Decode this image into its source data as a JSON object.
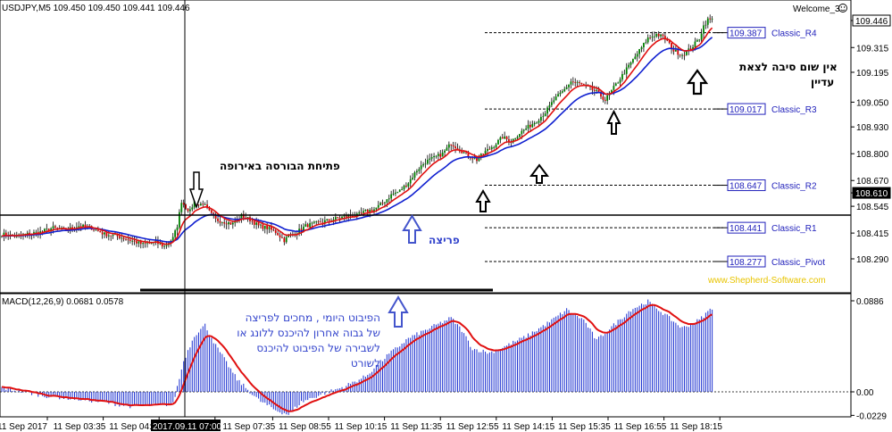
{
  "header": {
    "title": "USDJPY,M5  109.450 109.450 109.441 109.446",
    "account": "Welcome_3"
  },
  "chart_data": [
    {
      "type": "candlestick",
      "symbol": "USDJPY",
      "timeframe": "M5",
      "ylim": [
        108.26,
        109.5
      ],
      "y_ticks": [
        "109.446",
        "109.315",
        "109.195",
        "109.050",
        "108.930",
        "108.800",
        "108.670",
        "108.610",
        "108.545",
        "108.415",
        "108.290"
      ],
      "current_price": "109.446",
      "current_price_value": 109.446,
      "marked_level": "108.610",
      "marked_level_value": 108.61,
      "pivots": [
        {
          "name": "Classic_R4",
          "label": "109.387",
          "value": 109.387
        },
        {
          "name": "Classic_R3",
          "label": "109.017",
          "value": 109.017
        },
        {
          "name": "Classic_R2",
          "label": "108.647",
          "value": 108.647
        },
        {
          "name": "Classic_R1",
          "label": "108.441",
          "value": 108.441
        },
        {
          "name": "Classic_Pivot",
          "label": "108.277",
          "value": 108.277
        }
      ],
      "close_path": [
        [
          0,
          108.41
        ],
        [
          6,
          108.4
        ],
        [
          12,
          108.41
        ],
        [
          18,
          108.42
        ],
        [
          24,
          108.44
        ],
        [
          30,
          108.43
        ],
        [
          36,
          108.45
        ],
        [
          42,
          108.44
        ],
        [
          48,
          108.41
        ],
        [
          54,
          108.4
        ],
        [
          60,
          108.38
        ],
        [
          66,
          108.36
        ],
        [
          72,
          108.37
        ],
        [
          76,
          108.35
        ],
        [
          80,
          108.39
        ],
        [
          82,
          108.45
        ],
        [
          84,
          108.57
        ],
        [
          86,
          108.54
        ],
        [
          88,
          108.52
        ],
        [
          90,
          108.57
        ],
        [
          92,
          108.55
        ],
        [
          94,
          108.56
        ],
        [
          96,
          108.53
        ],
        [
          100,
          108.48
        ],
        [
          104,
          108.47
        ],
        [
          108,
          108.46
        ],
        [
          112,
          108.5
        ],
        [
          116,
          108.48
        ],
        [
          120,
          108.45
        ],
        [
          124,
          108.44
        ],
        [
          128,
          108.42
        ],
        [
          130,
          108.4
        ],
        [
          132,
          108.38
        ],
        [
          134,
          108.4
        ],
        [
          138,
          108.42
        ],
        [
          142,
          108.45
        ],
        [
          146,
          108.46
        ],
        [
          150,
          108.47
        ],
        [
          154,
          108.48
        ],
        [
          158,
          108.49
        ],
        [
          162,
          108.5
        ],
        [
          166,
          108.5
        ],
        [
          170,
          108.52
        ],
        [
          174,
          108.53
        ],
        [
          178,
          108.56
        ],
        [
          182,
          108.6
        ],
        [
          186,
          108.62
        ],
        [
          190,
          108.66
        ],
        [
          194,
          108.72
        ],
        [
          198,
          108.76
        ],
        [
          202,
          108.78
        ],
        [
          206,
          108.8
        ],
        [
          210,
          108.85
        ],
        [
          214,
          108.82
        ],
        [
          218,
          108.79
        ],
        [
          222,
          108.77
        ],
        [
          226,
          108.81
        ],
        [
          230,
          108.84
        ],
        [
          234,
          108.88
        ],
        [
          238,
          108.86
        ],
        [
          242,
          108.9
        ],
        [
          246,
          108.93
        ],
        [
          250,
          108.96
        ],
        [
          254,
          109.0
        ],
        [
          258,
          109.06
        ],
        [
          262,
          109.1
        ],
        [
          266,
          109.15
        ],
        [
          270,
          109.14
        ],
        [
          274,
          109.12
        ],
        [
          278,
          109.1
        ],
        [
          282,
          109.06
        ],
        [
          286,
          109.12
        ],
        [
          290,
          109.18
        ],
        [
          294,
          109.24
        ],
        [
          298,
          109.3
        ],
        [
          302,
          109.36
        ],
        [
          306,
          109.38
        ],
        [
          310,
          109.36
        ],
        [
          314,
          109.3
        ],
        [
          318,
          109.28
        ],
        [
          322,
          109.31
        ],
        [
          326,
          109.36
        ],
        [
          328,
          109.42
        ],
        [
          330,
          109.45
        ]
      ],
      "ema_fast_label": "",
      "ema_slow_label": "",
      "indicator": {
        "name": "MACD(12,26,9)",
        "label": "MACD(12,26,9) 0.0681 0.0578",
        "macd": "0.0681",
        "signal": "0.0578",
        "ylim": [
          -0.035,
          0.095
        ],
        "y_ticks": [
          "0.0886",
          "0.00",
          "-0.0229"
        ],
        "hist_path": [
          [
            0,
            0.004
          ],
          [
            20,
            -0.004
          ],
          [
            40,
            -0.008
          ],
          [
            60,
            -0.014
          ],
          [
            80,
            -0.012
          ],
          [
            85,
            0.03
          ],
          [
            90,
            0.055
          ],
          [
            95,
            0.065
          ],
          [
            100,
            0.045
          ],
          [
            110,
            0.012
          ],
          [
            120,
            -0.008
          ],
          [
            128,
            -0.018
          ],
          [
            134,
            -0.022
          ],
          [
            140,
            -0.01
          ],
          [
            150,
            -0.002
          ],
          [
            160,
            0.005
          ],
          [
            170,
            0.015
          ],
          [
            180,
            0.035
          ],
          [
            190,
            0.052
          ],
          [
            200,
            0.062
          ],
          [
            210,
            0.072
          ],
          [
            215,
            0.06
          ],
          [
            220,
            0.042
          ],
          [
            228,
            0.038
          ],
          [
            236,
            0.045
          ],
          [
            246,
            0.055
          ],
          [
            256,
            0.068
          ],
          [
            264,
            0.08
          ],
          [
            272,
            0.07
          ],
          [
            278,
            0.05
          ],
          [
            286,
            0.065
          ],
          [
            294,
            0.08
          ],
          [
            302,
            0.088
          ],
          [
            310,
            0.075
          ],
          [
            318,
            0.062
          ],
          [
            326,
            0.07
          ],
          [
            332,
            0.082
          ]
        ]
      },
      "time_ticks": [
        "11 Sep 2017",
        "11 Sep 03:35",
        "11 Sep 04:55",
        "2017.09.11 07:00",
        "11 Sep 07:35",
        "11 Sep 08:55",
        "11 Sep 10:15",
        "11 Sep 11:35",
        "11 Sep 12:55",
        "11 Sep 14:15",
        "11 Sep 15:35",
        "11 Sep 16:55",
        "11 Sep 18:15"
      ],
      "crosshair_time": "2017.09.11 07:00"
    }
  ],
  "annotations": {
    "europe_open": "פתיחת הבורסה באירופה",
    "breakout": "פריצה",
    "no_reason_line1": "אין שום סיבה לצאת",
    "no_reason_line2": "עדיין",
    "pivot_note_line1": "הפיבוט היומי , מחכים לפריצה",
    "pivot_note_line2": "של גבוה אחרון להיכנס ללונג או",
    "pivot_note_line3": "לשבירה של הפיבוט להיכנס",
    "pivot_note_line4": "לשורט",
    "watermark": "www.Shepherd-Software.com"
  },
  "colors": {
    "bull": "#008000",
    "bear": "#d40000",
    "ema_fast": "#e01010",
    "ema_slow": "#1020d0",
    "macd_hist": "#1a2fd0",
    "signal": "#e01010",
    "watermark": "#e8c400",
    "pivot_text": "#2222bb",
    "annotation_blue": "#3344cc",
    "arrow_blue": "#4455cc"
  }
}
